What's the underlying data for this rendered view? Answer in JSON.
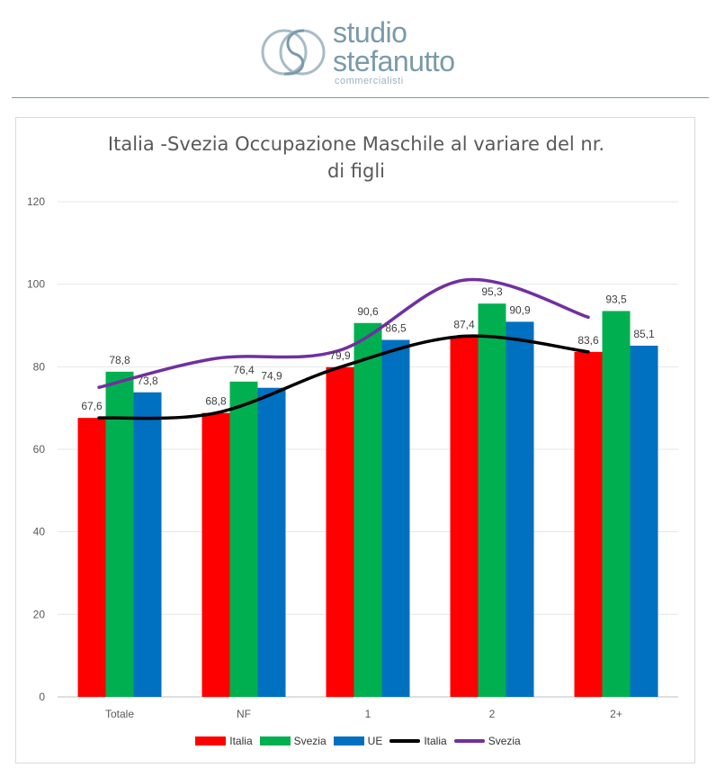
{
  "brand": {
    "line1": "studio",
    "line2": "stefanutto",
    "sub": "commercialisti",
    "color": "#7a9aaa"
  },
  "chart_data": {
    "type": "bar",
    "title": "Italia -Svezia Occupazione Maschile al variare del nr. di figli",
    "categories": [
      "Totale",
      "NF",
      "1",
      "2",
      "2+"
    ],
    "series": [
      {
        "name": "Italia",
        "kind": "bar",
        "color": "#ff0000",
        "values": [
          67.6,
          68.8,
          79.9,
          87.4,
          83.6
        ]
      },
      {
        "name": "Svezia",
        "kind": "bar",
        "color": "#00b050",
        "values": [
          78.8,
          76.4,
          90.6,
          95.3,
          93.5
        ]
      },
      {
        "name": "UE",
        "kind": "bar",
        "color": "#0070c0",
        "values": [
          73.8,
          74.9,
          86.5,
          90.9,
          85.1
        ]
      },
      {
        "name": "Italia",
        "kind": "trendline",
        "color": "#000000",
        "values": [
          67.6,
          68.8,
          79.9,
          87.4,
          83.6
        ]
      },
      {
        "name": "Svezia",
        "kind": "trendline",
        "color": "#7030a0",
        "values": [
          75.0,
          82.0,
          84.0,
          101.0,
          92.0
        ]
      }
    ],
    "data_labels": [
      [
        "67,6",
        "68,8",
        "79,9",
        "87,4",
        "83,6"
      ],
      [
        "78,8",
        "76,4",
        "90,6",
        "95,3",
        "93,5"
      ],
      [
        "73,8",
        "74,9",
        "86,5",
        "90,9",
        "85,1"
      ]
    ],
    "ylim": [
      0,
      120
    ],
    "yticks": [
      "0",
      "20",
      "40",
      "60",
      "80",
      "100",
      "120"
    ],
    "grid": true,
    "legend_position": "bottom"
  }
}
